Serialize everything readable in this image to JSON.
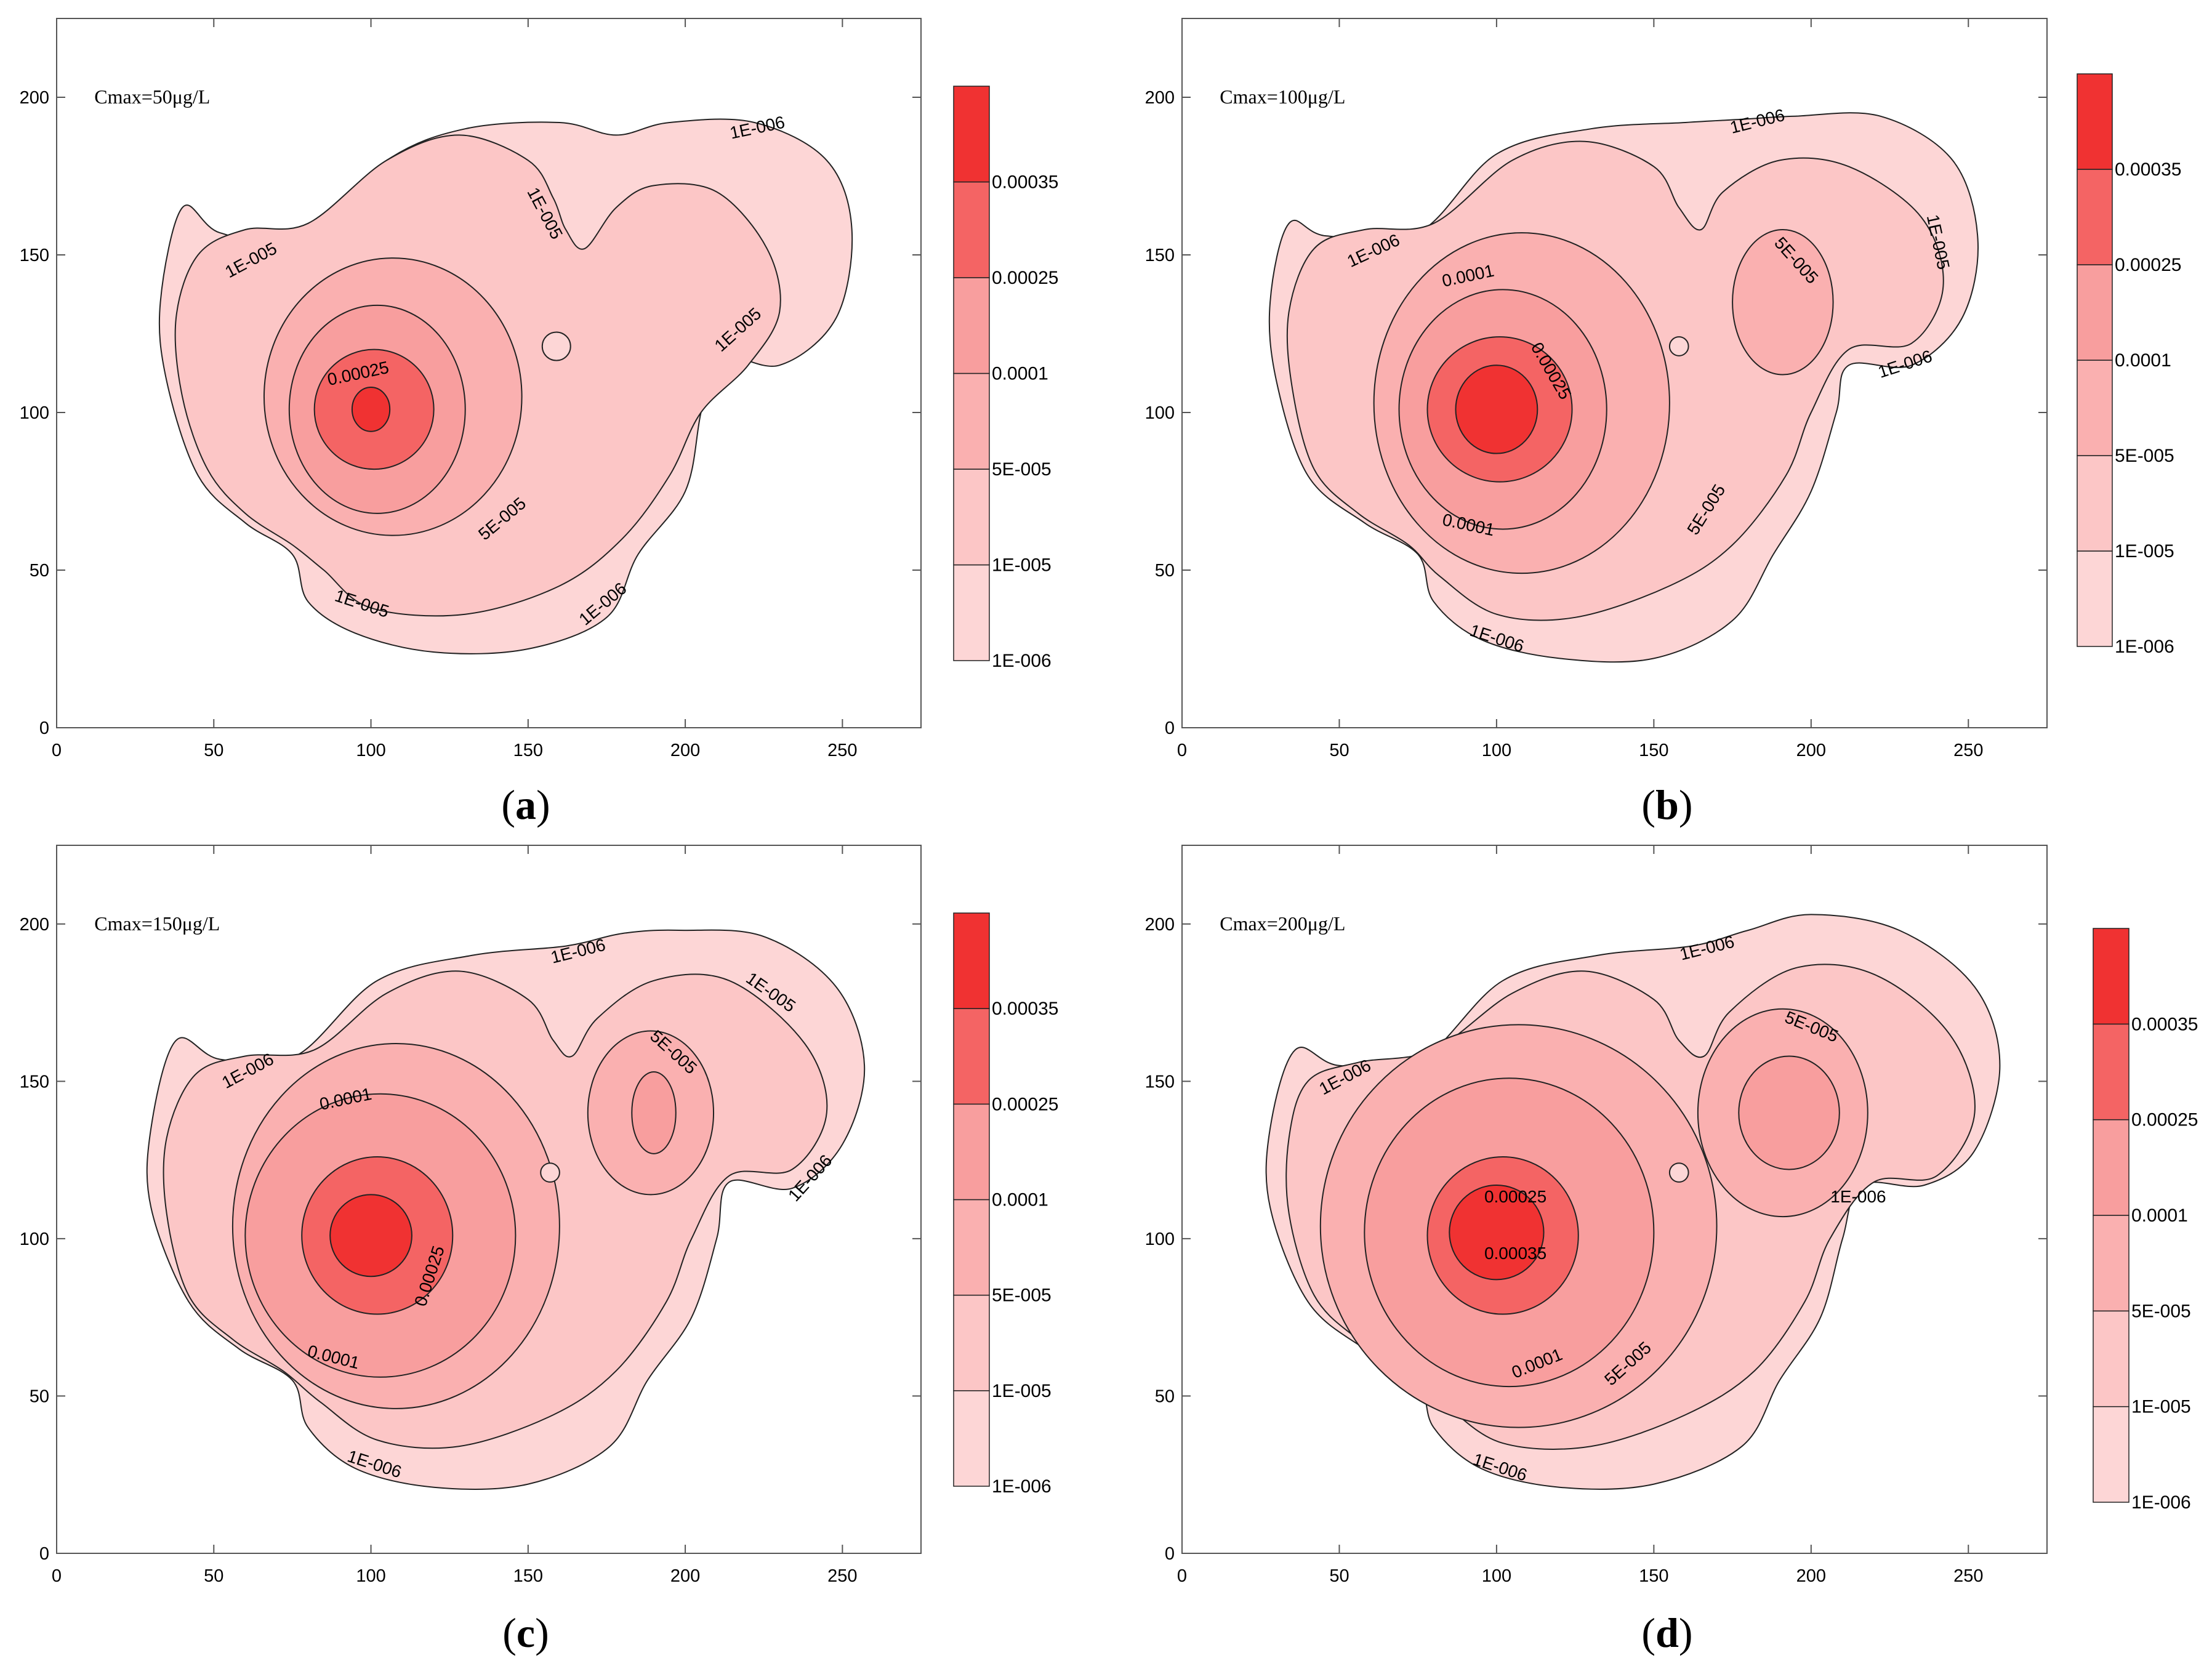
{
  "colors": {
    "level_1e6": "#fdd6d6",
    "level_1e5": "#fcc6c6",
    "level_5e5": "#fab0b0",
    "level_1e4": "#f89e9e",
    "level_25e4": "#f46464",
    "level_35e4": "#f03232",
    "line": "#222222",
    "axis": "#555555"
  },
  "chart_data": [
    {
      "panel": "a",
      "type": "contour",
      "caption": "a",
      "annotation": "Cmax=50μg/L",
      "xlim": [
        0,
        275
      ],
      "ylim": [
        0,
        225
      ],
      "xticks": [
        "0",
        "50",
        "100",
        "150",
        "200",
        "250"
      ],
      "yticks": [
        "0",
        "50",
        "100",
        "150",
        "200"
      ],
      "xtick_values": [
        0,
        50,
        100,
        150,
        200,
        250
      ],
      "ytick_values": [
        0,
        50,
        100,
        150,
        200
      ],
      "legend_levels": [
        "1E-006",
        "1E-005",
        "5E-005",
        "0.0001",
        "0.00025",
        "0.00035"
      ],
      "contour_labels": [
        {
          "text": "1E-006",
          "x": 223,
          "y": 190,
          "angle": -12
        },
        {
          "text": "1E-005",
          "x": 62,
          "y": 148,
          "angle": -28
        },
        {
          "text": "1E-005",
          "x": 155,
          "y": 163,
          "angle": 62
        },
        {
          "text": "1E-005",
          "x": 217,
          "y": 126,
          "angle": -42
        },
        {
          "text": "0.00025",
          "x": 96,
          "y": 112,
          "angle": -12
        },
        {
          "text": "5E-005",
          "x": 142,
          "y": 66,
          "angle": -40
        },
        {
          "text": "1E-005",
          "x": 97,
          "y": 39,
          "angle": 18
        },
        {
          "text": "1E-006",
          "x": 174,
          "y": 39,
          "angle": -40
        }
      ],
      "regions": [
        {
          "level": "1E-006",
          "shape": "outer"
        },
        {
          "level": "1E-005",
          "shape": "mid"
        },
        {
          "level": "5E-005",
          "cx": 107,
          "cy": 105,
          "rx": 41,
          "ry": 44
        },
        {
          "level": "0.0001",
          "cx": 102,
          "cy": 101,
          "rx": 28,
          "ry": 33
        },
        {
          "level": "0.00025",
          "cx": 101,
          "cy": 101,
          "rx": 19,
          "ry": 19
        },
        {
          "level": "0.00035",
          "cx": 100,
          "cy": 101,
          "rx": 6,
          "ry": 7
        }
      ],
      "islands": [
        {
          "cx": 159,
          "cy": 121,
          "rx": 4.5,
          "ry": 4.5
        }
      ]
    },
    {
      "panel": "b",
      "type": "contour",
      "caption": "b",
      "annotation": "Cmax=100μg/L",
      "xlim": [
        0,
        275
      ],
      "ylim": [
        0,
        225
      ],
      "xticks": [
        "0",
        "50",
        "100",
        "150",
        "200",
        "250"
      ],
      "yticks": [
        "0",
        "50",
        "100",
        "150",
        "200"
      ],
      "xtick_values": [
        0,
        50,
        100,
        150,
        200,
        250
      ],
      "ytick_values": [
        0,
        50,
        100,
        150,
        200
      ],
      "legend_levels": [
        "1E-006",
        "1E-005",
        "5E-005",
        "0.0001",
        "0.00025",
        "0.00035"
      ],
      "contour_labels": [
        {
          "text": "1E-006",
          "x": 183,
          "y": 192,
          "angle": -14
        },
        {
          "text": "1E-006",
          "x": 61,
          "y": 151,
          "angle": -25
        },
        {
          "text": "1E-005",
          "x": 240,
          "y": 154,
          "angle": 78
        },
        {
          "text": "5E-005",
          "x": 195,
          "y": 148,
          "angle": 48
        },
        {
          "text": "0.0001",
          "x": 91,
          "y": 143,
          "angle": -12
        },
        {
          "text": "0.00025",
          "x": 117,
          "y": 113,
          "angle": 60
        },
        {
          "text": "1E-006",
          "x": 230,
          "y": 115,
          "angle": -18
        },
        {
          "text": "0.0001",
          "x": 91,
          "y": 64,
          "angle": 12
        },
        {
          "text": "5E-005",
          "x": 167,
          "y": 69,
          "angle": -58
        },
        {
          "text": "1E-006",
          "x": 100,
          "y": 28,
          "angle": 18
        }
      ],
      "regions": [
        {
          "level": "1E-006",
          "shape": "outer"
        },
        {
          "level": "1E-005",
          "shape": "mid"
        },
        {
          "level": "5E-005",
          "cx": 108,
          "cy": 103,
          "rx": 47,
          "ry": 54
        },
        {
          "level": "0.0001",
          "cx": 102,
          "cy": 101,
          "rx": 33,
          "ry": 38
        },
        {
          "level": "0.00025",
          "cx": 101,
          "cy": 101,
          "rx": 23,
          "ry": 23
        },
        {
          "level": "0.00035",
          "cx": 100,
          "cy": 101,
          "rx": 13,
          "ry": 14
        }
      ],
      "secondary": [
        {
          "level": "5E-005",
          "cx": 191,
          "cy": 135,
          "rx": 16,
          "ry": 23
        }
      ],
      "islands": [
        {
          "cx": 158,
          "cy": 121,
          "rx": 3,
          "ry": 3
        }
      ]
    },
    {
      "panel": "c",
      "type": "contour",
      "caption": "c",
      "annotation": "Cmax=150μg/L",
      "xlim": [
        0,
        275
      ],
      "ylim": [
        0,
        225
      ],
      "xticks": [
        "0",
        "50",
        "100",
        "150",
        "200",
        "250"
      ],
      "yticks": [
        "0",
        "50",
        "100",
        "150",
        "200"
      ],
      "xtick_values": [
        0,
        50,
        100,
        150,
        200,
        250
      ],
      "ytick_values": [
        0,
        50,
        100,
        150,
        200
      ],
      "legend_levels": [
        "1E-006",
        "1E-005",
        "5E-005",
        "0.0001",
        "0.00025",
        "0.00035"
      ],
      "contour_labels": [
        {
          "text": "1E-006",
          "x": 166,
          "y": 191,
          "angle": -14
        },
        {
          "text": "1E-005",
          "x": 227,
          "y": 178,
          "angle": 35
        },
        {
          "text": "1E-006",
          "x": 61,
          "y": 153,
          "angle": -28
        },
        {
          "text": "5E-005",
          "x": 196,
          "y": 159,
          "angle": 42
        },
        {
          "text": "0.0001",
          "x": 92,
          "y": 144,
          "angle": -12
        },
        {
          "text": "1E-006",
          "x": 240,
          "y": 119,
          "angle": -48
        },
        {
          "text": "0.00025",
          "x": 119,
          "y": 88,
          "angle": -72
        },
        {
          "text": "0.0001",
          "x": 88,
          "y": 62,
          "angle": 14
        },
        {
          "text": "1E-006",
          "x": 101,
          "y": 28,
          "angle": 18
        }
      ],
      "regions": [
        {
          "level": "1E-006",
          "shape": "outer"
        },
        {
          "level": "1E-005",
          "shape": "mid"
        },
        {
          "level": "5E-005",
          "cx": 108,
          "cy": 104,
          "rx": 52,
          "ry": 58
        },
        {
          "level": "0.0001",
          "cx": 103,
          "cy": 101,
          "rx": 43,
          "ry": 45
        },
        {
          "level": "0.00025",
          "cx": 102,
          "cy": 101,
          "rx": 24,
          "ry": 25
        },
        {
          "level": "0.00035",
          "cx": 100,
          "cy": 101,
          "rx": 13,
          "ry": 13
        }
      ],
      "secondary": [
        {
          "level": "5E-005",
          "cx": 189,
          "cy": 140,
          "rx": 20,
          "ry": 26
        },
        {
          "level": "0.0001",
          "cx": 190,
          "cy": 140,
          "rx": 7,
          "ry": 13
        }
      ],
      "islands": [
        {
          "cx": 157,
          "cy": 121,
          "rx": 3,
          "ry": 3
        }
      ]
    },
    {
      "panel": "d",
      "type": "contour",
      "caption": "d",
      "annotation": "Cmax=200μg/L",
      "xlim": [
        0,
        275
      ],
      "ylim": [
        0,
        225
      ],
      "xticks": [
        "0",
        "50",
        "100",
        "150",
        "200",
        "250"
      ],
      "yticks": [
        "0",
        "50",
        "100",
        "150",
        "200"
      ],
      "xtick_values": [
        0,
        50,
        100,
        150,
        200,
        250
      ],
      "ytick_values": [
        0,
        50,
        100,
        150,
        200
      ],
      "legend_levels": [
        "1E-006",
        "1E-005",
        "5E-005",
        "0.0001",
        "0.00025",
        "0.00035"
      ],
      "contour_labels": [
        {
          "text": "1E-006",
          "x": 167,
          "y": 192,
          "angle": -14
        },
        {
          "text": "5E-005",
          "x": 200,
          "y": 167,
          "angle": 22
        },
        {
          "text": "1E-006",
          "x": 52,
          "y": 151,
          "angle": -28
        },
        {
          "text": "0.00025",
          "x": 106,
          "y": 113,
          "angle": 0
        },
        {
          "text": "0.00035",
          "x": 106,
          "y": 95,
          "angle": 0
        },
        {
          "text": "1E-006",
          "x": 215,
          "y": 113,
          "angle": 0
        },
        {
          "text": "0.0001",
          "x": 113,
          "y": 60,
          "angle": -22
        },
        {
          "text": "5E-005",
          "x": 142,
          "y": 60,
          "angle": -42
        },
        {
          "text": "1E-006",
          "x": 101,
          "y": 27,
          "angle": 18
        }
      ],
      "regions": [
        {
          "level": "1E-006",
          "shape": "outer"
        },
        {
          "level": "1E-005",
          "shape": "mid"
        },
        {
          "level": "5E-005",
          "cx": 107,
          "cy": 104,
          "rx": 63,
          "ry": 64
        },
        {
          "level": "0.0001",
          "cx": 104,
          "cy": 102,
          "rx": 46,
          "ry": 49
        },
        {
          "level": "0.00025",
          "cx": 102,
          "cy": 101,
          "rx": 24,
          "ry": 25
        },
        {
          "level": "0.00035",
          "cx": 100,
          "cy": 102,
          "rx": 15,
          "ry": 15
        }
      ],
      "secondary": [
        {
          "level": "5E-005",
          "cx": 191,
          "cy": 140,
          "rx": 27,
          "ry": 33
        },
        {
          "level": "0.0001",
          "cx": 193,
          "cy": 140,
          "rx": 16,
          "ry": 18
        }
      ],
      "islands": [
        {
          "cx": 158,
          "cy": 121,
          "rx": 3,
          "ry": 3
        }
      ]
    }
  ]
}
